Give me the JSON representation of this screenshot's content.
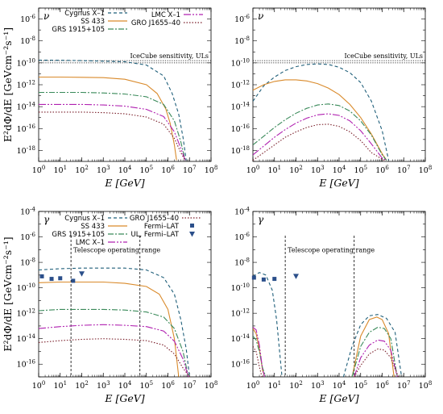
{
  "shared": {
    "xlabel": "E [GeV]",
    "ylabel": "E²dΦ/dE [GeVcm⁻²s⁻¹]",
    "x_exponents": [
      0,
      1,
      2,
      3,
      4,
      5,
      6,
      7,
      8
    ],
    "icecube_label": "IceCube sensitivity, ULs",
    "telescope_label": "Telescope operating range",
    "colors": {
      "Cygnus X-1": "#1f5f7a",
      "SS 433": "#d98a2b",
      "GRS 1915+105": "#3a8a5a",
      "LMC X-1": "#b020b0",
      "GRO J1655-40": "#7a1f2a",
      "Fermi-LAT": "#2b4f8a"
    }
  },
  "chart_data": [
    {
      "panel": "top-left",
      "particle": "ν",
      "type": "line",
      "xlim": [
        0,
        8
      ],
      "ylim": [
        -19,
        -5
      ],
      "log_x": true,
      "log_y": true,
      "y_ticks": [
        -6,
        -8,
        -10,
        -12,
        -14,
        -16,
        -18
      ],
      "legend": [
        "Cygnus X–1",
        "SS 433",
        "GRS 1915+105",
        "LMC X–1",
        "GRO J1655–40"
      ],
      "icecube_ul": [
        -9.8,
        -10.0
      ],
      "series": [
        {
          "name": "Cygnus X–1",
          "x": [
            0,
            1,
            2,
            3,
            4,
            5,
            5.8,
            6.2,
            6.5,
            6.7,
            6.85
          ],
          "y": [
            -9.75,
            -9.77,
            -9.8,
            -9.85,
            -9.9,
            -10.2,
            -11.2,
            -12.8,
            -14.7,
            -16.8,
            -18.9
          ]
        },
        {
          "name": "SS 433",
          "x": [
            0,
            1,
            2,
            3,
            4,
            5,
            5.5,
            5.9,
            6.1,
            6.3,
            6.4
          ],
          "y": [
            -11.3,
            -11.3,
            -11.32,
            -11.35,
            -11.5,
            -12.0,
            -12.8,
            -14.2,
            -15.5,
            -17.5,
            -18.9
          ]
        },
        {
          "name": "GRS 1915+105",
          "x": [
            0,
            1,
            2,
            3,
            4,
            5,
            5.8,
            6.3,
            6.6,
            6.8
          ],
          "y": [
            -12.7,
            -12.7,
            -12.7,
            -12.75,
            -12.85,
            -13.1,
            -13.8,
            -15.3,
            -17.2,
            -18.9
          ]
        },
        {
          "name": "LMC X–1",
          "x": [
            0,
            1,
            2,
            3,
            4,
            5,
            5.8,
            6.3,
            6.6,
            6.8
          ],
          "y": [
            -13.8,
            -13.8,
            -13.8,
            -13.85,
            -13.95,
            -14.25,
            -14.9,
            -16.3,
            -17.8,
            -18.9
          ]
        },
        {
          "name": "GRO J1655–40",
          "x": [
            0,
            1,
            2,
            3,
            4,
            5,
            5.8,
            6.3,
            6.6,
            6.8
          ],
          "y": [
            -14.5,
            -14.5,
            -14.5,
            -14.55,
            -14.65,
            -14.95,
            -15.6,
            -16.9,
            -18.2,
            -18.9
          ]
        }
      ]
    },
    {
      "panel": "top-right",
      "particle": "ν",
      "type": "line",
      "xlim": [
        0,
        8
      ],
      "ylim": [
        -19,
        -5
      ],
      "log_x": true,
      "log_y": true,
      "y_ticks": [
        -6,
        -8,
        -10,
        -12,
        -14,
        -16,
        -18
      ],
      "icecube_ul": [
        -9.8,
        -10.0
      ],
      "series": [
        {
          "name": "Cygnus X–1",
          "x": [
            0,
            0.5,
            1,
            1.5,
            2,
            2.5,
            3,
            3.5,
            4,
            4.5,
            5,
            5.5,
            6,
            6.3
          ],
          "y": [
            -13.5,
            -12.1,
            -11.3,
            -10.7,
            -10.35,
            -10.15,
            -10.1,
            -10.15,
            -10.4,
            -10.9,
            -11.8,
            -13.5,
            -16.2,
            -18.9
          ]
        },
        {
          "name": "SS 433",
          "x": [
            0,
            0.5,
            1,
            1.5,
            2,
            2.5,
            3,
            3.5,
            4,
            4.5,
            5,
            5.5,
            6,
            6.2
          ],
          "y": [
            -12.5,
            -12.0,
            -11.7,
            -11.55,
            -11.55,
            -11.65,
            -11.9,
            -12.3,
            -12.9,
            -13.8,
            -15.0,
            -16.5,
            -18.3,
            -18.9
          ]
        },
        {
          "name": "GRS 1915+105",
          "x": [
            0,
            0.5,
            1,
            1.5,
            2,
            2.5,
            3,
            3.5,
            4,
            4.5,
            5,
            5.5,
            6,
            6.2
          ],
          "y": [
            -17.5,
            -16.7,
            -15.9,
            -15.2,
            -14.6,
            -14.15,
            -13.85,
            -13.75,
            -13.9,
            -14.4,
            -15.3,
            -16.6,
            -18.4,
            -18.9
          ]
        },
        {
          "name": "LMC X–1",
          "x": [
            0,
            0.5,
            1,
            1.5,
            2,
            2.5,
            3,
            3.5,
            4,
            4.5,
            5,
            5.5,
            6,
            6.2
          ],
          "y": [
            -18.4,
            -17.6,
            -16.8,
            -16.1,
            -15.5,
            -15.05,
            -14.75,
            -14.65,
            -14.8,
            -15.3,
            -16.2,
            -17.4,
            -18.7,
            -18.9
          ]
        },
        {
          "name": "GRO J1655–40",
          "x": [
            0,
            0.5,
            1,
            1.5,
            2,
            2.5,
            3,
            3.5,
            4,
            4.5,
            5,
            5.5,
            6,
            6.1
          ],
          "y": [
            -18.9,
            -18.2,
            -17.5,
            -16.8,
            -16.3,
            -15.9,
            -15.65,
            -15.6,
            -15.8,
            -16.3,
            -17.1,
            -18.2,
            -18.8,
            -18.9
          ]
        }
      ]
    },
    {
      "panel": "bottom-left",
      "particle": "γ",
      "type": "line",
      "xlim": [
        0,
        8
      ],
      "ylim": [
        -17,
        -4
      ],
      "log_x": true,
      "log_y": true,
      "y_ticks": [
        -4,
        -6,
        -8,
        -10,
        -12,
        -14,
        -16
      ],
      "legend": [
        "Cygnus X–1",
        "SS 433",
        "GRS 1915+105",
        "LMC X–1",
        "GRO J1655–40",
        "Fermi–LAT",
        "UL, Fermi–LAT"
      ],
      "telescope_range": [
        1.5,
        4.7
      ],
      "series": [
        {
          "name": "Cygnus X–1",
          "x": [
            0,
            1,
            2,
            3,
            4,
            5,
            5.8,
            6.3,
            6.6,
            6.85,
            7.0
          ],
          "y": [
            -8.6,
            -8.5,
            -8.45,
            -8.45,
            -8.45,
            -8.6,
            -9.2,
            -10.5,
            -12.5,
            -14.8,
            -17.0
          ]
        },
        {
          "name": "SS 433",
          "x": [
            0,
            1,
            2,
            3,
            4,
            5,
            5.6,
            6.0,
            6.3,
            6.5
          ],
          "y": [
            -9.6,
            -9.55,
            -9.55,
            -9.55,
            -9.65,
            -9.9,
            -10.5,
            -11.7,
            -14.0,
            -17.0
          ]
        },
        {
          "name": "GRS 1915+105",
          "x": [
            0,
            1,
            2,
            3,
            4,
            5,
            5.8,
            6.3,
            6.7,
            6.95
          ],
          "y": [
            -11.8,
            -11.7,
            -11.7,
            -11.7,
            -11.75,
            -11.9,
            -12.3,
            -13.2,
            -15.0,
            -17.0
          ]
        },
        {
          "name": "LMC X–1",
          "x": [
            0,
            1,
            2,
            3,
            4,
            5,
            5.8,
            6.3,
            6.7,
            6.95
          ],
          "y": [
            -13.2,
            -13.05,
            -12.95,
            -12.9,
            -12.95,
            -13.05,
            -13.4,
            -14.2,
            -15.6,
            -17.0
          ]
        },
        {
          "name": "GRO J1655–40",
          "x": [
            0,
            1,
            2,
            3,
            4,
            5,
            5.8,
            6.3,
            6.7,
            7.0
          ],
          "y": [
            -14.3,
            -14.15,
            -14.05,
            -14.0,
            -14.05,
            -14.15,
            -14.5,
            -15.2,
            -16.3,
            -17.0
          ]
        }
      ],
      "points": [
        {
          "name": "Fermi–LAT",
          "x": [
            0.15,
            0.6,
            1.0,
            1.6
          ],
          "y": [
            -9.1,
            -9.3,
            -9.25,
            -9.45
          ]
        }
      ],
      "upper_limits": [
        {
          "name": "UL, Fermi–LAT",
          "x": [
            2.0
          ],
          "y": [
            -8.9
          ]
        }
      ]
    },
    {
      "panel": "bottom-right",
      "particle": "γ",
      "type": "line",
      "xlim": [
        0,
        8
      ],
      "ylim": [
        -17,
        -4
      ],
      "log_x": true,
      "log_y": true,
      "y_ticks": [
        -4,
        -6,
        -8,
        -10,
        -12,
        -14,
        -16
      ],
      "telescope_range": [
        1.5,
        4.7
      ],
      "series": [
        {
          "name": "Cygnus X–1",
          "x": [
            0,
            0.3,
            0.6,
            0.9,
            1.1,
            1.35
          ],
          "y": [
            -9.1,
            -8.8,
            -9.0,
            -10.2,
            -12.5,
            -17.0
          ]
        },
        {
          "name": "SS 433",
          "x": [
            0,
            0.15,
            0.3,
            0.45,
            0.55
          ],
          "y": [
            -13.2,
            -13.6,
            -14.8,
            -16.5,
            -17.0
          ]
        },
        {
          "name": "GRS 1915+105",
          "x": [
            0,
            0.15,
            0.3,
            0.45,
            0.6
          ],
          "y": [
            -13.8,
            -14.1,
            -15.0,
            -16.3,
            -17.0
          ]
        },
        {
          "name": "LMC X–1",
          "x": [
            0,
            0.15,
            0.3,
            0.45,
            0.55
          ],
          "y": [
            -13.1,
            -13.3,
            -14.5,
            -16.4,
            -17.0
          ]
        },
        {
          "name": "GRO J1655–40",
          "x": [
            0,
            0.15,
            0.3,
            0.42
          ],
          "y": [
            -14.6,
            -15.0,
            -16.2,
            -17.0
          ]
        },
        {
          "name": "Cygnus X–1",
          "x": [
            4.2,
            4.6,
            5.0,
            5.4,
            5.8,
            6.2,
            6.6,
            6.9
          ],
          "y": [
            -17.0,
            -14.6,
            -12.9,
            -12.2,
            -12.1,
            -12.4,
            -13.5,
            -17.0
          ]
        },
        {
          "name": "SS 433",
          "x": [
            4.6,
            5.0,
            5.4,
            5.75,
            6.0,
            6.3,
            6.55
          ],
          "y": [
            -17.0,
            -13.8,
            -12.5,
            -12.3,
            -12.5,
            -13.6,
            -17.0
          ]
        },
        {
          "name": "GRS 1915+105",
          "x": [
            4.6,
            5.0,
            5.4,
            5.8,
            6.1,
            6.4,
            6.7
          ],
          "y": [
            -17.0,
            -14.6,
            -13.5,
            -13.1,
            -13.2,
            -14.0,
            -17.0
          ]
        },
        {
          "name": "LMC X–1",
          "x": [
            4.7,
            5.0,
            5.4,
            5.8,
            6.1,
            6.4,
            6.7
          ],
          "y": [
            -17.0,
            -15.5,
            -14.5,
            -14.1,
            -14.2,
            -14.9,
            -17.0
          ]
        },
        {
          "name": "GRO J1655–40",
          "x": [
            4.7,
            5.0,
            5.4,
            5.8,
            6.1,
            6.4,
            6.75
          ],
          "y": [
            -17.0,
            -16.1,
            -15.2,
            -14.8,
            -14.9,
            -15.5,
            -17.0
          ]
        }
      ],
      "points": [
        {
          "name": "Fermi–LAT",
          "x": [
            0.05,
            0.5,
            1.0
          ],
          "y": [
            -9.2,
            -9.35,
            -9.3
          ]
        }
      ],
      "upper_limits": [
        {
          "name": "UL, Fermi–LAT",
          "x": [
            2.0
          ],
          "y": [
            -9.1
          ]
        }
      ]
    }
  ]
}
